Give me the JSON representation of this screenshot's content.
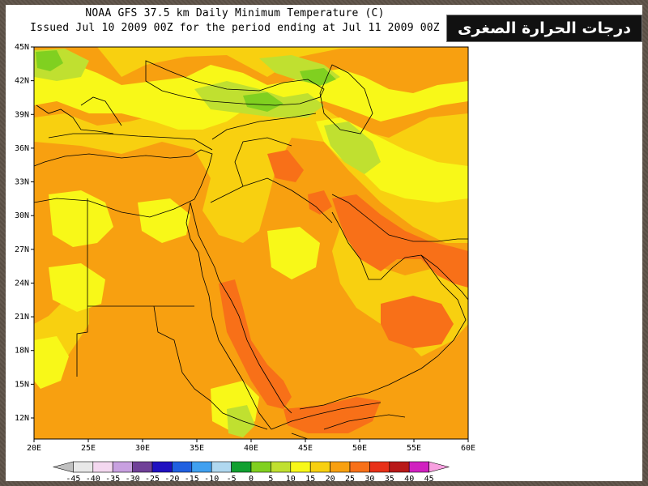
{
  "title": {
    "line1": "NOAA GFS 37.5 km Daily Minimum Temperature (C)",
    "line2": "Issued Jul 10 2009 00Z for the period ending at Jul 11 2009 00Z"
  },
  "badge": {
    "text": "درجات الحرارة الصغرى"
  },
  "map": {
    "lat_labels": [
      "45N",
      "42N",
      "39N",
      "36N",
      "33N",
      "30N",
      "27N",
      "24N",
      "21N",
      "18N",
      "15N",
      "12N"
    ],
    "lon_labels": [
      "20E",
      "25E",
      "30E",
      "35E",
      "40E",
      "45E",
      "50E",
      "55E",
      "60E"
    ]
  },
  "colorbar": {
    "labels": [
      "-45",
      "-40",
      "-35",
      "-30",
      "-25",
      "-20",
      "-15",
      "-10",
      "-5",
      "0",
      "5",
      "10",
      "15",
      "20",
      "25",
      "30",
      "35",
      "40",
      "45"
    ],
    "colors": [
      "#c0c0c0",
      "#e8e8e8",
      "#f4d8f0",
      "#c8a0e0",
      "#704098",
      "#2010c0",
      "#2060e0",
      "#40a0f0",
      "#b0d8f0",
      "#10a030",
      "#80d020",
      "#c0e030",
      "#f8f818",
      "#f8d010",
      "#f8a010",
      "#f87018",
      "#e83018",
      "#b81818",
      "#d020c0",
      "#f8a0e0"
    ],
    "fill_colors": {
      "t10": "#80d020",
      "t15": "#c0e030",
      "t20": "#f8f818",
      "t25": "#f8d010",
      "t30": "#f8a010",
      "t35": "#f87018",
      "t40": "#e83018"
    }
  }
}
